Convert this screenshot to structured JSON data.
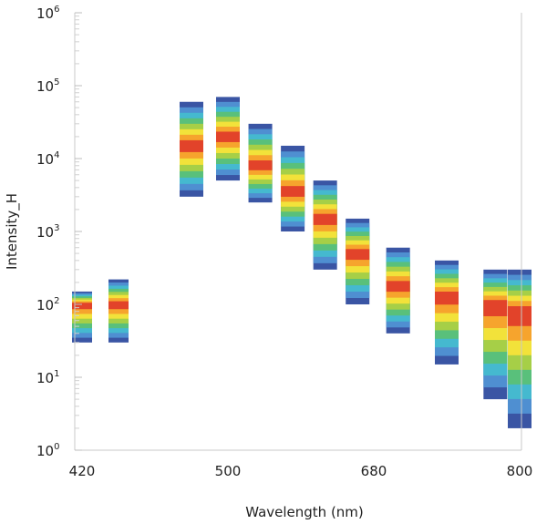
{
  "chart_data": {
    "type": "heatmap",
    "title": "",
    "xlabel": "Wavelength (nm)",
    "ylabel": "Intensity_H",
    "x_tick_labels": [
      "420",
      "500",
      "680",
      "800"
    ],
    "y_tick_labels": [
      {
        "base": "10",
        "exp": "0"
      },
      {
        "base": "10",
        "exp": "1"
      },
      {
        "base": "10",
        "exp": "2"
      },
      {
        "base": "10",
        "exp": "3"
      },
      {
        "base": "10",
        "exp": "4"
      },
      {
        "base": "10",
        "exp": "5"
      },
      {
        "base": "10",
        "exp": "6"
      }
    ],
    "ylim": [
      1,
      1000000
    ],
    "yscale": "log",
    "colormap": [
      "#3a55a4",
      "#4f8fd1",
      "#45b9cf",
      "#59c07b",
      "#a6cf47",
      "#f2e23a",
      "#f6a42d",
      "#e2432a"
    ],
    "bands": [
      {
        "x": "420",
        "lo": 30,
        "peak": 100,
        "hi": 150
      },
      {
        "x": "440",
        "lo": 30,
        "peak": 100,
        "hi": 220
      },
      {
        "x": "480",
        "lo": 3000,
        "peak": 15000,
        "hi": 60000
      },
      {
        "x": "500",
        "lo": 5000,
        "peak": 20000,
        "hi": 70000
      },
      {
        "x": "540",
        "lo": 2500,
        "peak": 8000,
        "hi": 30000
      },
      {
        "x": "580",
        "lo": 1000,
        "peak": 3500,
        "hi": 15000
      },
      {
        "x": "620",
        "lo": 300,
        "peak": 1500,
        "hi": 5000
      },
      {
        "x": "660",
        "lo": 100,
        "peak": 500,
        "hi": 1500
      },
      {
        "x": "700",
        "lo": 40,
        "peak": 180,
        "hi": 600
      },
      {
        "x": "740",
        "lo": 15,
        "peak": 130,
        "hi": 400
      },
      {
        "x": "780",
        "lo": 5,
        "peak": 100,
        "hi": 300
      },
      {
        "x": "800",
        "lo": 2,
        "peak": 80,
        "hi": 300
      }
    ]
  }
}
